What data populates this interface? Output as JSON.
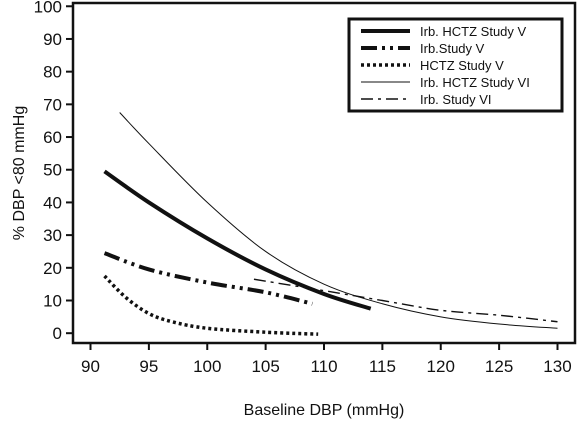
{
  "chart_data": {
    "type": "line",
    "title": "",
    "xlabel": "Baseline DBP (mmHg)",
    "ylabel": "% DBP <80 mmHg",
    "xlim": [
      88.5,
      131.5
    ],
    "ylim": [
      -3,
      101
    ],
    "xticks": [
      90,
      95,
      100,
      105,
      110,
      115,
      120,
      125,
      130
    ],
    "yticks": [
      0,
      10,
      20,
      30,
      40,
      50,
      60,
      70,
      80,
      90,
      100
    ],
    "grid": false,
    "legend_position": "top-right",
    "series": [
      {
        "name": "Irb. HCTZ Study V",
        "style": "thick-solid",
        "x": [
          91.2,
          95,
          100,
          105,
          110,
          114
        ],
        "y": [
          49.5,
          40,
          29,
          19.5,
          12,
          7.5
        ]
      },
      {
        "name": "Irb.Study V",
        "style": "thick-dash-dot-dot",
        "x": [
          91.2,
          95,
          100,
          105,
          109
        ],
        "y": [
          24.5,
          19.5,
          15.5,
          12.5,
          9
        ]
      },
      {
        "name": "HCTZ Study V",
        "style": "thick-dotted",
        "x": [
          91.2,
          93,
          95,
          97,
          100,
          105,
          109.5
        ],
        "y": [
          17.5,
          11,
          6,
          3.5,
          1.5,
          0.3,
          -0.3
        ]
      },
      {
        "name": "Irb. HCTZ Study VI",
        "style": "thin-solid",
        "x": [
          92.5,
          95,
          100,
          105,
          110,
          115,
          120,
          125,
          130
        ],
        "y": [
          67.5,
          58,
          40,
          25,
          15,
          9,
          5,
          2.8,
          1.5
        ]
      },
      {
        "name": "Irb. Study VI",
        "style": "dash-dot",
        "x": [
          104,
          110,
          115,
          120,
          125,
          130
        ],
        "y": [
          16.5,
          13,
          10,
          7,
          5.5,
          3.5
        ]
      }
    ]
  }
}
